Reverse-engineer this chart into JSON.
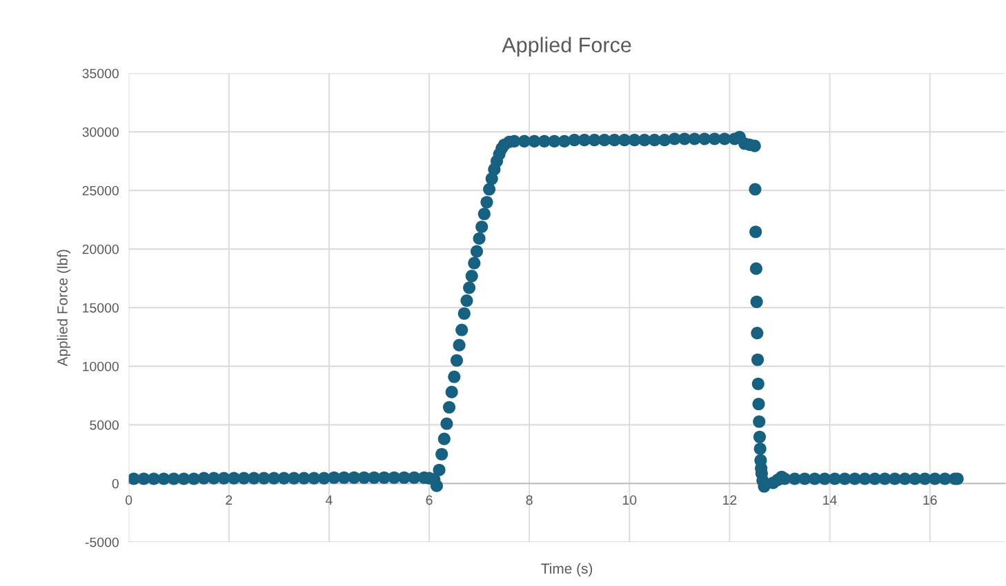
{
  "chart_data": {
    "type": "scatter",
    "title": "Applied Force",
    "xlabel": "Time (s)",
    "ylabel": "Applied Force (lbf)",
    "xlim": [
      0,
      17.5
    ],
    "xticks": [
      0,
      2,
      4,
      6,
      8,
      10,
      12,
      14,
      16
    ],
    "ylim": [
      -5000,
      35000
    ],
    "yticks": [
      -5000,
      0,
      5000,
      10000,
      15000,
      20000,
      25000,
      30000,
      35000
    ],
    "grid": true,
    "marker": "circle",
    "series": [
      {
        "color": "#17607f",
        "x": [
          0.1,
          0.3,
          0.5,
          0.7,
          0.9,
          1.1,
          1.3,
          1.5,
          1.7,
          1.9,
          2.1,
          2.3,
          2.5,
          2.7,
          2.9,
          3.1,
          3.3,
          3.5,
          3.7,
          3.9,
          4.1,
          4.3,
          4.5,
          4.7,
          4.9,
          5.1,
          5.3,
          5.5,
          5.7,
          5.9,
          6.0,
          6.1,
          6.15,
          6.2,
          6.25,
          6.3,
          6.35,
          6.4,
          6.45,
          6.5,
          6.55,
          6.6,
          6.65,
          6.7,
          6.75,
          6.8,
          6.85,
          6.9,
          6.95,
          7.0,
          7.05,
          7.1,
          7.15,
          7.2,
          7.25,
          7.3,
          7.35,
          7.4,
          7.45,
          7.5,
          7.6,
          7.7,
          7.9,
          8.1,
          8.3,
          8.5,
          8.7,
          8.9,
          9.1,
          9.3,
          9.5,
          9.7,
          9.9,
          10.1,
          10.3,
          10.5,
          10.7,
          10.9,
          11.1,
          11.3,
          11.5,
          11.7,
          11.9,
          12.1,
          12.2,
          12.3,
          12.4,
          12.5,
          12.51,
          12.52,
          12.53,
          12.54,
          12.55,
          12.56,
          12.57,
          12.58,
          12.59,
          12.6,
          12.61,
          12.62,
          12.63,
          12.64,
          12.66,
          12.69,
          12.87,
          12.96,
          13.04,
          13.1,
          13.3,
          13.5,
          13.7,
          13.9,
          14.1,
          14.3,
          14.5,
          14.7,
          14.9,
          15.1,
          15.3,
          15.5,
          15.7,
          15.9,
          16.1,
          16.3,
          16.5,
          16.55
        ],
        "values": [
          400,
          400,
          400,
          400,
          400,
          400,
          400,
          450,
          450,
          450,
          450,
          450,
          450,
          450,
          450,
          450,
          450,
          450,
          450,
          450,
          500,
          500,
          500,
          500,
          500,
          500,
          500,
          500,
          500,
          500,
          450,
          350,
          -200,
          1150,
          2500,
          3800,
          5100,
          6500,
          7800,
          9100,
          10500,
          11800,
          13100,
          14500,
          15600,
          16700,
          17700,
          18800,
          19800,
          20900,
          21900,
          23000,
          24000,
          25100,
          26000,
          26800,
          27500,
          28100,
          28600,
          28900,
          29150,
          29200,
          29200,
          29200,
          29200,
          29200,
          29200,
          29300,
          29300,
          29300,
          29300,
          29300,
          29300,
          29300,
          29300,
          29300,
          29300,
          29400,
          29400,
          29400,
          29400,
          29400,
          29400,
          29400,
          29550,
          29000,
          28900,
          28800,
          25100,
          21470,
          18330,
          15500,
          12830,
          10560,
          8500,
          6780,
          5280,
          3970,
          2960,
          1970,
          1300,
          860,
          250,
          -250,
          50,
          300,
          560,
          400,
          400,
          400,
          400,
          400,
          400,
          400,
          400,
          400,
          400,
          400,
          400,
          400,
          400,
          400,
          400,
          400,
          400,
          400
        ]
      }
    ]
  }
}
